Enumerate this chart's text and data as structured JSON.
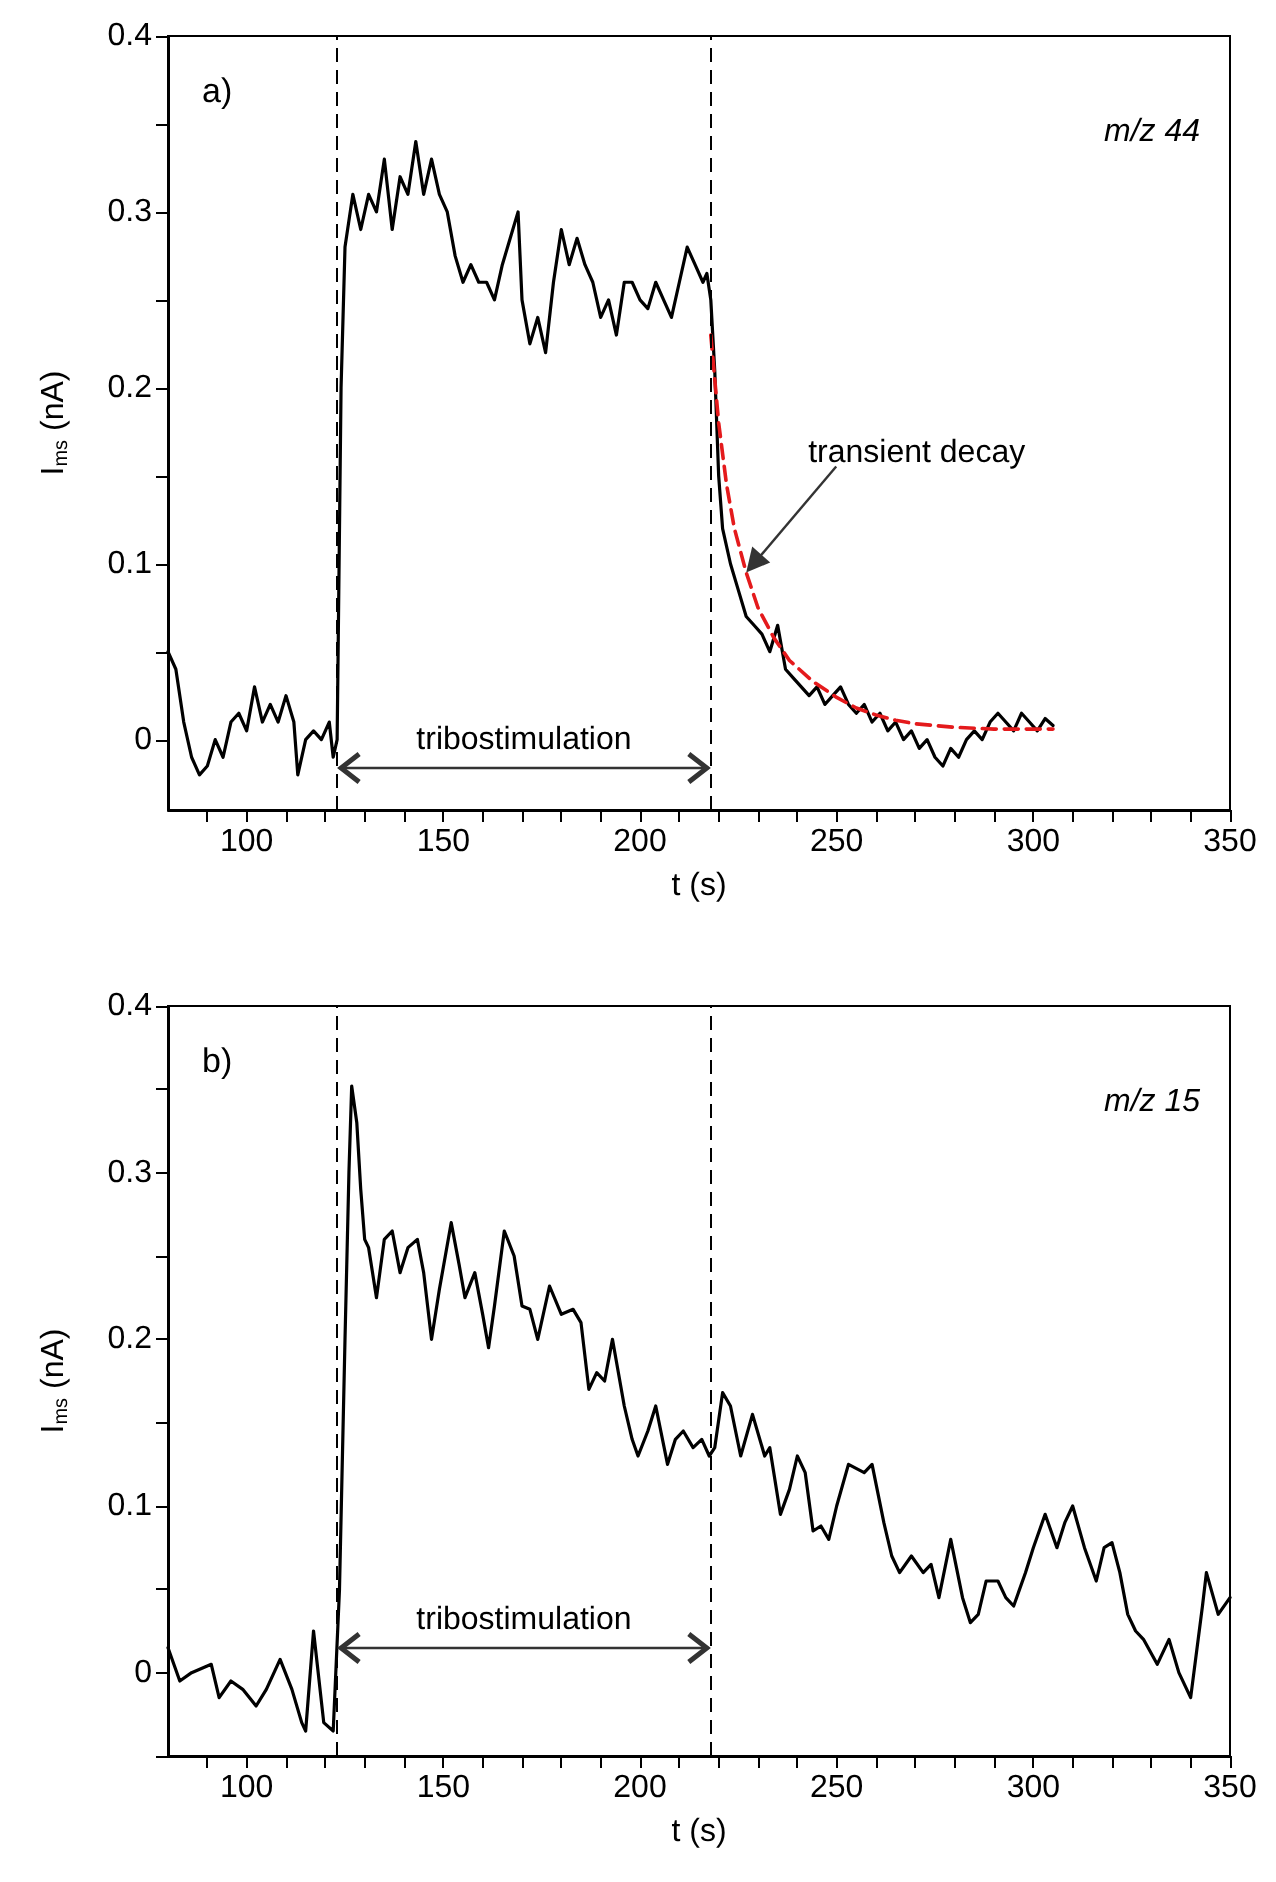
{
  "chart_data": [
    {
      "type": "line",
      "title": "a)",
      "xlabel": "t (s)",
      "ylabel": "I$_{ms}$ (nA)",
      "annotations": [
        "m/z 44",
        "tribostimulation",
        "transient decay"
      ],
      "xlim": [
        80,
        350
      ],
      "xticks": [
        {
          "value": 90,
          "label": null
        },
        100,
        {
          "value": 110,
          "label": null
        },
        {
          "value": 120,
          "label": null
        },
        {
          "value": 130,
          "label": null
        },
        {
          "value": 140,
          "label": null
        },
        150,
        {
          "value": 160,
          "label": null
        },
        {
          "value": 170,
          "label": null
        },
        {
          "value": 180,
          "label": null
        },
        {
          "value": 190,
          "label": null
        },
        200,
        {
          "value": 210,
          "label": null
        },
        {
          "value": 220,
          "label": null
        },
        {
          "value": 230,
          "label": null
        },
        {
          "value": 240,
          "label": null
        },
        250,
        {
          "value": 260,
          "label": null
        },
        {
          "value": 270,
          "label": null
        },
        {
          "value": 280,
          "label": null
        },
        {
          "value": 290,
          "label": null
        },
        300,
        {
          "value": 310,
          "label": null
        },
        {
          "value": 320,
          "label": null
        },
        {
          "value": 330,
          "label": null
        },
        {
          "value": 340,
          "label": null
        },
        350
      ],
      "ylim": [
        -0.04,
        0.4
      ],
      "yticks": [
        0,
        {
          "value": 0.05,
          "label": null
        },
        0.1,
        {
          "value": 0.15,
          "label": null
        },
        0.2,
        {
          "value": 0.25,
          "label": null
        },
        0.3,
        {
          "value": 0.35,
          "label": null
        },
        0.4
      ],
      "ref_lines": [
        {
          "axis": "x",
          "value": 123,
          "line_style": "dashed",
          "color": "#000000"
        },
        {
          "axis": "x",
          "value": 218,
          "line_style": "dashed",
          "color": "#000000"
        }
      ],
      "series": [
        {
          "color": "#000000",
          "line_style": "solid",
          "x": [
            80,
            82,
            84,
            86,
            88,
            90,
            92,
            94,
            96,
            98,
            100,
            102,
            104,
            106,
            108,
            110,
            112,
            113,
            115,
            117,
            119,
            121,
            122,
            123,
            124,
            125,
            127,
            129,
            131,
            133,
            135,
            137,
            139,
            141,
            143,
            145,
            147,
            149,
            151,
            153,
            155,
            157,
            159,
            161,
            163,
            165,
            167,
            169,
            170,
            172,
            174,
            176,
            178,
            180,
            182,
            184,
            186,
            188,
            190,
            192,
            194,
            196,
            198,
            200,
            202,
            204,
            206,
            208,
            210,
            212,
            214,
            216,
            217,
            218,
            219,
            220,
            221,
            223,
            225,
            227,
            229,
            231,
            233,
            235,
            237,
            239,
            241,
            243,
            245,
            247,
            249,
            251,
            253,
            255,
            257,
            259,
            261,
            263,
            265,
            267,
            269,
            271,
            273,
            275,
            277,
            279,
            281,
            283,
            285,
            287,
            289,
            291,
            293,
            295,
            297,
            299,
            301,
            303,
            305
          ],
          "values": [
            0.05,
            0.04,
            0.01,
            -0.01,
            -0.02,
            -0.015,
            0.0,
            -0.01,
            0.01,
            0.015,
            0.005,
            0.03,
            0.01,
            0.02,
            0.01,
            0.025,
            0.01,
            -0.02,
            0.0,
            0.005,
            0.0,
            0.01,
            -0.01,
            0.0,
            0.2,
            0.28,
            0.31,
            0.29,
            0.31,
            0.3,
            0.33,
            0.29,
            0.32,
            0.31,
            0.34,
            0.31,
            0.33,
            0.31,
            0.3,
            0.275,
            0.26,
            0.27,
            0.26,
            0.26,
            0.25,
            0.27,
            0.285,
            0.3,
            0.25,
            0.225,
            0.24,
            0.22,
            0.26,
            0.29,
            0.27,
            0.285,
            0.27,
            0.26,
            0.24,
            0.25,
            0.23,
            0.26,
            0.26,
            0.25,
            0.245,
            0.26,
            0.25,
            0.24,
            0.26,
            0.28,
            0.27,
            0.26,
            0.265,
            0.25,
            0.21,
            0.15,
            0.12,
            0.1,
            0.085,
            0.07,
            0.065,
            0.06,
            0.05,
            0.065,
            0.04,
            0.035,
            0.03,
            0.025,
            0.03,
            0.02,
            0.025,
            0.03,
            0.02,
            0.015,
            0.02,
            0.01,
            0.015,
            0.005,
            0.01,
            0.0,
            0.005,
            -0.005,
            0.0,
            -0.01,
            -0.015,
            -0.005,
            -0.01,
            0.0,
            0.005,
            0.0,
            0.01,
            0.015,
            0.01,
            0.005,
            0.015,
            0.01,
            0.005,
            0.012,
            0.008
          ]
        },
        {
          "color": "#e41a1c",
          "line_style": "dashed",
          "x": [
            218,
            220,
            222,
            224,
            227,
            230,
            234,
            238,
            244,
            250,
            255,
            260,
            265,
            270,
            280,
            290,
            305
          ],
          "values": [
            0.23,
            0.18,
            0.145,
            0.12,
            0.095,
            0.075,
            0.058,
            0.045,
            0.033,
            0.024,
            0.018,
            0.014,
            0.011,
            0.009,
            0.007,
            0.006,
            0.006
          ]
        }
      ],
      "grid": false,
      "marker": "none"
    },
    {
      "type": "line",
      "title": "b)",
      "xlabel": "t (s)",
      "ylabel": "I$_{ms}$ (nA)",
      "annotations": [
        "m/z 15",
        "tribostimulation"
      ],
      "xlim": [
        80,
        350
      ],
      "xticks": [
        {
          "value": 90,
          "label": null
        },
        100,
        {
          "value": 110,
          "label": null
        },
        {
          "value": 120,
          "label": null
        },
        {
          "value": 130,
          "label": null
        },
        {
          "value": 140,
          "label": null
        },
        150,
        {
          "value": 160,
          "label": null
        },
        {
          "value": 170,
          "label": null
        },
        {
          "value": 180,
          "label": null
        },
        {
          "value": 190,
          "label": null
        },
        200,
        {
          "value": 210,
          "label": null
        },
        {
          "value": 220,
          "label": null
        },
        {
          "value": 230,
          "label": null
        },
        {
          "value": 240,
          "label": null
        },
        250,
        {
          "value": 260,
          "label": null
        },
        {
          "value": 270,
          "label": null
        },
        {
          "value": 280,
          "label": null
        },
        {
          "value": 290,
          "label": null
        },
        300,
        {
          "value": 310,
          "label": null
        },
        {
          "value": 320,
          "label": null
        },
        {
          "value": 330,
          "label": null
        },
        {
          "value": 340,
          "label": null
        },
        350
      ],
      "ylim": [
        -0.05,
        0.4
      ],
      "yticks": [
        {
          "value": -0.05,
          "label": null
        },
        0,
        {
          "value": 0.05,
          "label": null
        },
        0.1,
        {
          "value": 0.15,
          "label": null
        },
        0.2,
        {
          "value": 0.25,
          "label": null
        },
        0.3,
        {
          "value": 0.35,
          "label": null
        },
        0.4
      ],
      "ref_lines": [
        {
          "axis": "x",
          "value": 123,
          "line_style": "dashed",
          "color": "#000000"
        },
        {
          "axis": "x",
          "value": 218,
          "line_style": "dashed",
          "color": "#000000"
        }
      ],
      "series": [
        {
          "color": "#000000",
          "line_style": "solid",
          "x": [
            80,
            83,
            86,
            91,
            93,
            96,
            99,
            102.4,
            105,
            108.5,
            111.5,
            114,
            115,
            117,
            119.6,
            122,
            123.6,
            125,
            126,
            126.7,
            128,
            129,
            130,
            131,
            133,
            135,
            137,
            139,
            141,
            143.4,
            145,
            147,
            149,
            152,
            154,
            155.5,
            158,
            160,
            161.5,
            163,
            165.5,
            168,
            170,
            172,
            174,
            177,
            180,
            183,
            185,
            187,
            189,
            191,
            193,
            196,
            198,
            199.5,
            202,
            204,
            207,
            209,
            211,
            213.5,
            215.7,
            217.6,
            219,
            221,
            223,
            225.6,
            228.6,
            231.7,
            233,
            235.7,
            238,
            240,
            242,
            244,
            246,
            248,
            250,
            253,
            257,
            259,
            262,
            264,
            266,
            269,
            272,
            274,
            276,
            279,
            282,
            284,
            286,
            288,
            291,
            293,
            295,
            298,
            300,
            303,
            306,
            308,
            310,
            313,
            316,
            318,
            320,
            322,
            324,
            326,
            328,
            331.5,
            334.5,
            337,
            340,
            343,
            344,
            347,
            350
          ],
          "values": [
            0.015,
            -0.005,
            0.0,
            0.005,
            -0.015,
            -0.005,
            -0.01,
            -0.02,
            -0.01,
            0.008,
            -0.01,
            -0.03,
            -0.035,
            0.025,
            -0.03,
            -0.035,
            0.05,
            0.2,
            0.3,
            0.352,
            0.33,
            0.29,
            0.26,
            0.255,
            0.225,
            0.26,
            0.265,
            0.24,
            0.255,
            0.26,
            0.24,
            0.2,
            0.23,
            0.27,
            0.245,
            0.225,
            0.24,
            0.215,
            0.195,
            0.22,
            0.265,
            0.25,
            0.22,
            0.218,
            0.2,
            0.232,
            0.215,
            0.218,
            0.21,
            0.17,
            0.18,
            0.175,
            0.2,
            0.16,
            0.14,
            0.13,
            0.145,
            0.16,
            0.125,
            0.14,
            0.145,
            0.135,
            0.14,
            0.13,
            0.135,
            0.168,
            0.16,
            0.13,
            0.155,
            0.13,
            0.135,
            0.095,
            0.11,
            0.13,
            0.12,
            0.085,
            0.088,
            0.08,
            0.1,
            0.125,
            0.12,
            0.125,
            0.09,
            0.07,
            0.06,
            0.07,
            0.06,
            0.065,
            0.045,
            0.08,
            0.045,
            0.03,
            0.035,
            0.055,
            0.055,
            0.045,
            0.04,
            0.06,
            0.075,
            0.095,
            0.075,
            0.09,
            0.1,
            0.075,
            0.055,
            0.075,
            0.078,
            0.06,
            0.035,
            0.025,
            0.02,
            0.005,
            0.02,
            0.0,
            -0.015,
            0.04,
            0.06,
            0.035,
            0.045
          ]
        }
      ],
      "grid": false,
      "marker": "none"
    }
  ]
}
